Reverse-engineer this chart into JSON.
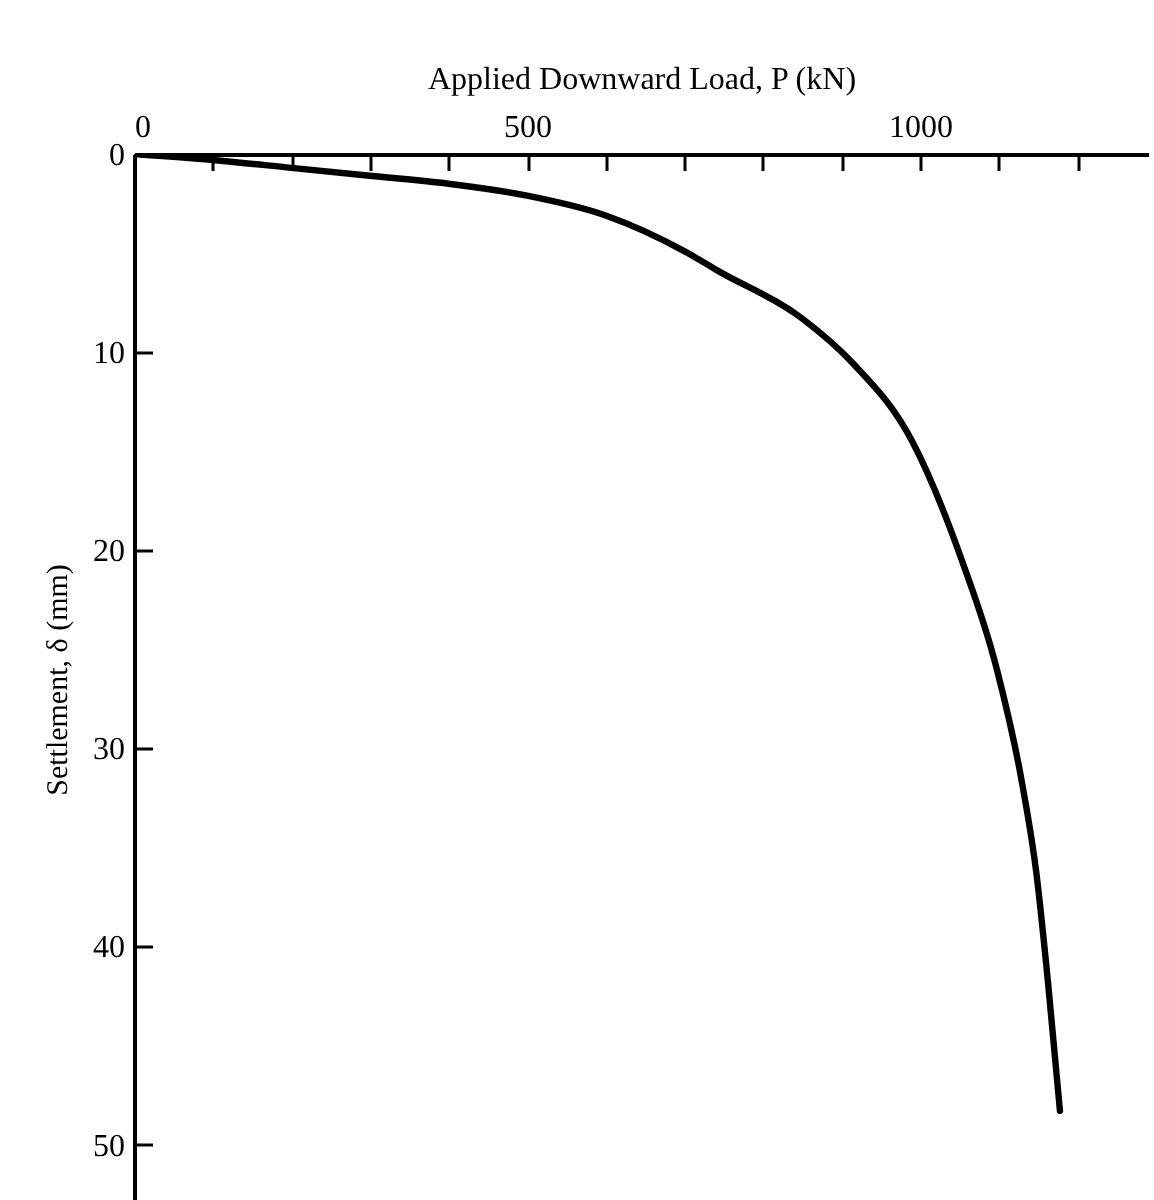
{
  "chart_data": {
    "type": "line",
    "xlabel": "Applied Downward Load, P (kN)",
    "ylabel": "Settlement, δ (mm)",
    "x": [
      0,
      100,
      200,
      300,
      400,
      500,
      600,
      700,
      743,
      850,
      913,
      990,
      1054,
      1097,
      1130,
      1148,
      1163,
      1178
    ],
    "series": [
      {
        "color": "#000000",
        "values": [
          0,
          0.3,
          0.7,
          1.1,
          1.5,
          2.1,
          3.1,
          4.9,
          5.9,
          8.3,
          10.5,
          14.5,
          20.6,
          25.9,
          31.8,
          36.3,
          41.9,
          48.3
        ]
      }
    ],
    "xlim": [
      0,
      1290
    ],
    "ylim": [
      53,
      0
    ],
    "xticks": [
      0,
      {
        "value": 100,
        "label": null
      },
      {
        "value": 200,
        "label": null
      },
      {
        "value": 300,
        "label": null
      },
      {
        "value": 400,
        "label": null
      },
      500,
      {
        "value": 600,
        "label": null
      },
      {
        "value": 700,
        "label": null
      },
      {
        "value": 800,
        "label": null
      },
      {
        "value": 900,
        "label": null
      },
      1000,
      {
        "value": 1100,
        "label": null
      },
      {
        "value": 1200,
        "label": null
      }
    ],
    "yticks": [
      0,
      10,
      20,
      30,
      40,
      50
    ],
    "grid": false,
    "marker": "none",
    "line_style": "solid"
  }
}
